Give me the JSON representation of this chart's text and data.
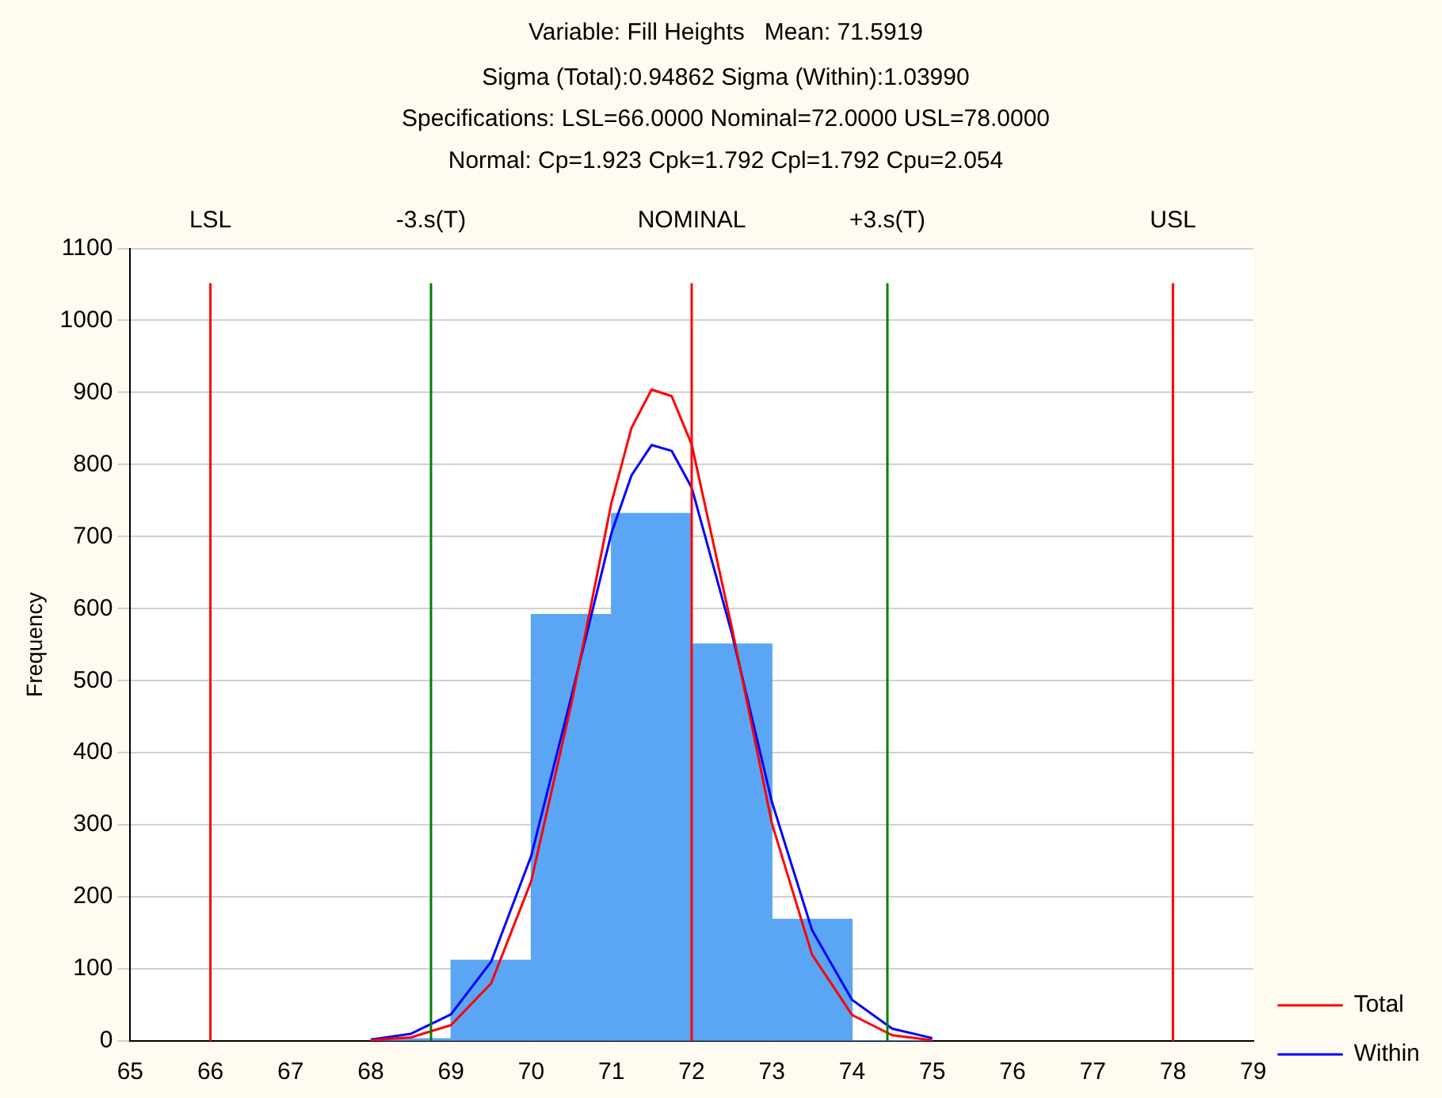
{
  "chart_data": {
    "type": "histogram",
    "title": "Variable: Fill Heights   Mean: 71.5919",
    "subtitle": "Sigma (Total):0.94862 Sigma (Within):1.03990\nSpecifications: LSL=66.0000 Nominal=72.0000 USL=78.0000\nNormal: Cp=1.923 Cpk=1.792 Cpl=1.792 Cpu=2.054",
    "ylabel": "Frequency",
    "bins": [
      68,
      69,
      70,
      71,
      72,
      73,
      74,
      75
    ],
    "values": [
      3,
      112,
      592,
      732,
      551,
      169,
      0
    ],
    "color": "#5aa6f5",
    "series": [
      {
        "type": "line",
        "name": "Total",
        "color": "#ff0000",
        "x": [
          68,
          68.5,
          69,
          69.5,
          70,
          70.5,
          71,
          71.25,
          71.5,
          71.75,
          72,
          72.5,
          73,
          73.5,
          74,
          74.5,
          75
        ],
        "values": [
          1,
          5,
          22,
          80,
          222,
          468,
          747,
          851,
          904,
          895,
          828,
          574,
          302,
          120,
          36,
          8,
          1
        ]
      },
      {
        "type": "line",
        "name": "Within",
        "color": "#0000ff",
        "x": [
          68,
          68.5,
          69,
          69.5,
          70,
          70.5,
          71,
          71.25,
          71.5,
          71.75,
          72,
          72.5,
          73,
          73.5,
          74,
          74.5,
          75
        ],
        "values": [
          2,
          10,
          37,
          110,
          257,
          478,
          705,
          785,
          827,
          819,
          768,
          566,
          332,
          154,
          57,
          17,
          4
        ]
      }
    ],
    "ref_lines": [
      {
        "axis": "x",
        "value": 66,
        "label": "LSL",
        "color": "#ff0000"
      },
      {
        "axis": "x",
        "value": 68.75,
        "label": "-3.s(T)",
        "color": "#008000"
      },
      {
        "axis": "x",
        "value": 72,
        "label": "NOMINAL",
        "color": "#ff0000"
      },
      {
        "axis": "x",
        "value": 74.44,
        "label": "+3.s(T)",
        "color": "#008000"
      },
      {
        "axis": "x",
        "value": 78,
        "label": "USL",
        "color": "#ff0000"
      }
    ],
    "xlim": [
      65,
      79
    ],
    "xticks": [
      65,
      66,
      67,
      68,
      69,
      70,
      71,
      72,
      73,
      74,
      75,
      76,
      77,
      78,
      79
    ],
    "ylim": [
      0,
      1100
    ],
    "yticks": [
      0,
      100,
      200,
      300,
      400,
      500,
      600,
      700,
      800,
      900,
      1000,
      1100
    ],
    "grid": "y",
    "legend": "bottom right"
  }
}
